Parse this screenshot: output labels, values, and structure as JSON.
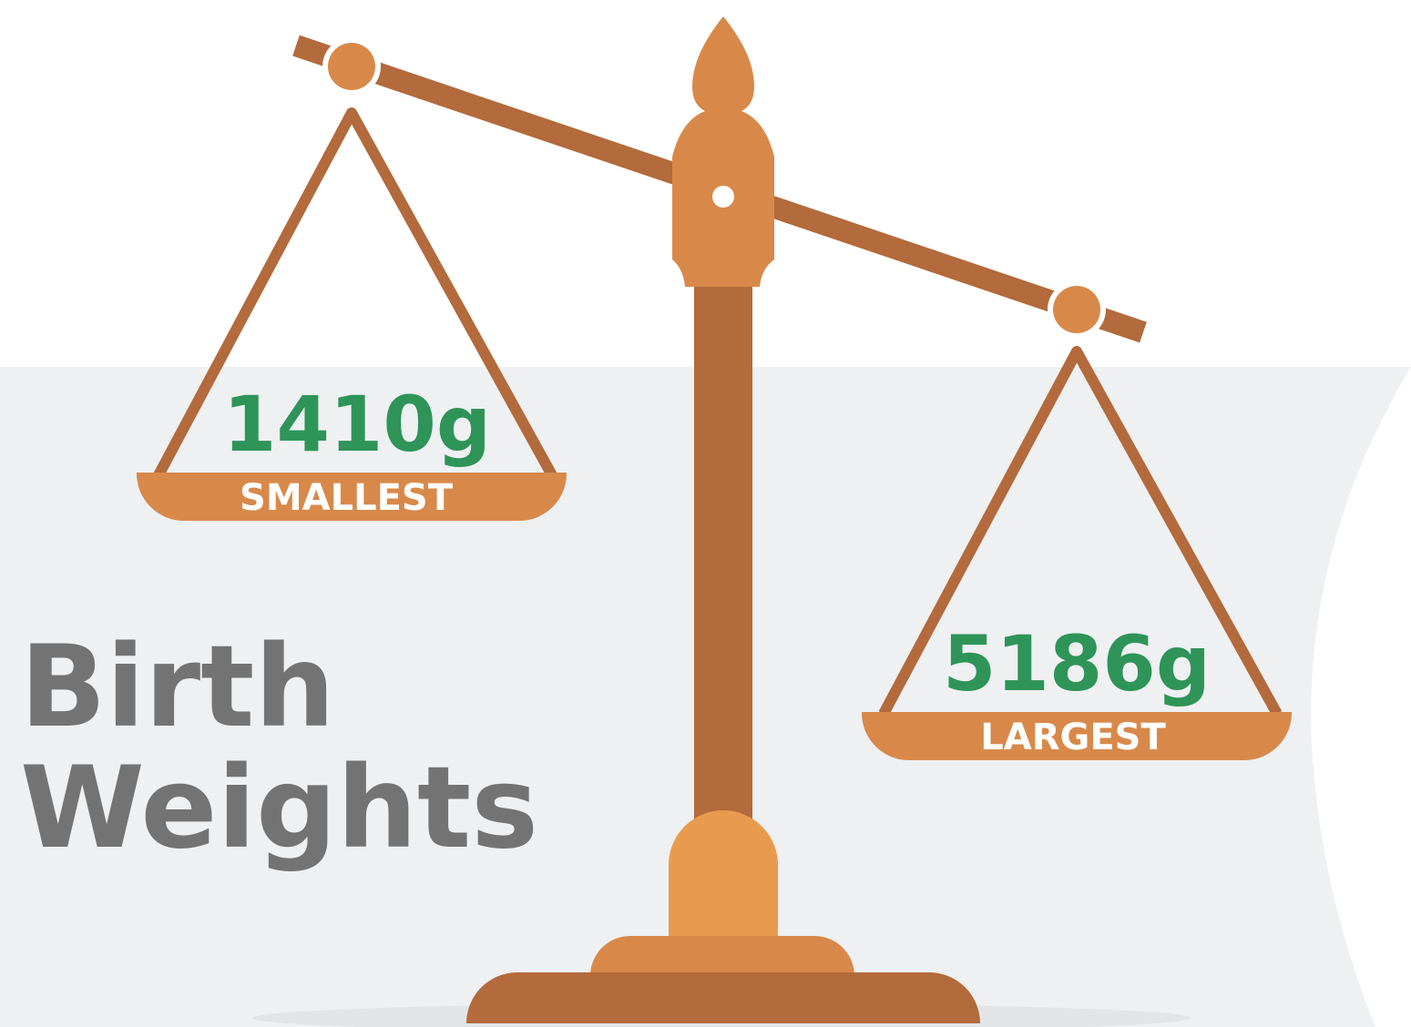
{
  "title_lines": [
    "Birth",
    "Weights"
  ],
  "pans": [
    {
      "value": "1410g",
      "label": "SMALLEST"
    },
    {
      "value": "5186g",
      "label": "LARGEST"
    }
  ]
}
